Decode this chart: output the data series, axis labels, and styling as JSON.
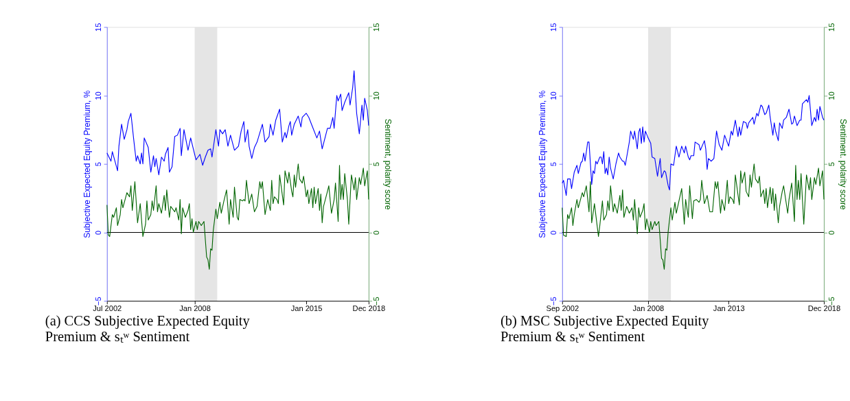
{
  "chart_data": [
    {
      "type": "line",
      "title": "(a) CCS Subjective Expected Equity Premium & sₜʷ Sentiment",
      "ylabel": "Subjective Expected Equity Premium, %",
      "y2label": "Sentiment, polarity score",
      "xlim": [
        "2002-07",
        "2018-12"
      ],
      "xticks": [
        {
          "value": "2002-07",
          "label": "Jul 2002"
        },
        {
          "value": "2008-01",
          "label": "Jan 2008"
        },
        {
          "value": "2015-01",
          "label": "Jan 2015"
        },
        {
          "value": "2018-12",
          "label": "Dec 2018"
        }
      ],
      "ylim": [
        -5,
        15
      ],
      "yticks": [
        -5,
        0,
        5,
        10,
        15
      ],
      "y2lim": [
        -5,
        15
      ],
      "y2ticks": [
        -5,
        0,
        5,
        10,
        15
      ],
      "grid": false,
      "marker": "none",
      "line_style": "solid",
      "bands": [
        {
          "axis": "x",
          "from": "2008-01",
          "to": "2009-06",
          "color": "#e5e5e5"
        }
      ],
      "ref_lines": [
        {
          "axis": "y",
          "value": 0,
          "color": "#000000"
        }
      ],
      "series": [
        {
          "color": "#0000ff",
          "x": [
            "2002-07",
            "2002-10",
            "2002-11",
            "2003-03",
            "2003-04",
            "2003-06",
            "2003-08",
            "2003-10",
            "2003-11",
            "2004-01",
            "2004-03",
            "2004-05",
            "2004-06",
            "2004-08",
            "2004-09",
            "2004-10",
            "2004-11",
            "2005-02",
            "2005-04",
            "2005-06",
            "2005-07",
            "2005-08",
            "2005-10",
            "2005-12",
            "2006-02",
            "2006-03",
            "2006-05",
            "2006-06",
            "2006-08",
            "2006-10",
            "2006-12",
            "2007-02",
            "2007-03",
            "2007-05",
            "2007-08",
            "2007-10",
            "2007-12",
            "2008-02",
            "2008-05",
            "2008-07",
            "2008-09",
            "2008-11",
            "2009-01",
            "2009-02",
            "2009-05",
            "2009-07",
            "2009-08",
            "2009-10",
            "2009-12",
            "2010-02",
            "2010-04",
            "2010-07",
            "2010-10",
            "2010-12",
            "2011-02",
            "2011-03",
            "2011-05",
            "2011-06",
            "2011-08",
            "2011-10",
            "2011-12",
            "2012-04",
            "2012-06",
            "2012-09",
            "2012-10",
            "2012-12",
            "2013-02",
            "2013-05",
            "2013-07",
            "2013-09",
            "2013-10",
            "2013-12",
            "2014-01",
            "2014-02",
            "2014-04",
            "2014-07",
            "2014-09",
            "2014-10",
            "2015-01",
            "2015-03",
            "2015-05",
            "2015-09",
            "2015-11",
            "2016-01",
            "2016-05",
            "2016-07",
            "2016-09",
            "2016-10",
            "2016-12",
            "2017-01",
            "2017-03",
            "2017-04",
            "2017-06",
            "2017-09",
            "2017-10",
            "2017-12",
            "2018-01",
            "2018-03",
            "2018-05",
            "2018-07",
            "2018-08",
            "2018-09",
            "2018-11",
            "2018-12"
          ],
          "values": [
            5.8,
            5.2,
            5.9,
            4.5,
            6.3,
            7.9,
            6.8,
            7.5,
            8.1,
            8.7,
            6.9,
            5.2,
            5.6,
            5.0,
            5.8,
            5.0,
            6.9,
            6.2,
            4.4,
            5.6,
            4.8,
            5.4,
            4.2,
            5.5,
            5.2,
            5.7,
            6.2,
            4.4,
            4.8,
            7.0,
            7.1,
            7.6,
            5.6,
            7.5,
            6.0,
            6.9,
            6.1,
            5.3,
            5.7,
            4.9,
            5.5,
            6.0,
            6.1,
            5.5,
            7.5,
            6.3,
            7.5,
            7.2,
            7.5,
            6.3,
            7.1,
            6.0,
            6.3,
            7.4,
            8.1,
            6.6,
            7.5,
            6.3,
            5.4,
            6.2,
            6.6,
            7.9,
            6.6,
            7.0,
            7.9,
            7.1,
            8.2,
            9.0,
            6.6,
            7.3,
            6.9,
            7.8,
            8.1,
            7.1,
            7.9,
            8.5,
            7.7,
            8.4,
            8.7,
            8.4,
            7.9,
            6.9,
            7.4,
            6.1,
            7.6,
            7.6,
            8.4,
            7.6,
            10.0,
            9.6,
            10.1,
            8.9,
            9.5,
            10.2,
            9.3,
            10.6,
            11.8,
            8.7,
            7.2,
            9.3,
            8.2,
            9.8,
            8.9,
            7.8
          ]
        },
        {
          "color": "#006400",
          "axis": "y2",
          "x": [
            "2002-07",
            "2002-08",
            "2002-09",
            "2002-11",
            "2002-12",
            "2003-02",
            "2003-03",
            "2003-05",
            "2003-06",
            "2003-07",
            "2003-10",
            "2003-12",
            "2004-01",
            "2004-02",
            "2004-04",
            "2004-06",
            "2004-08",
            "2004-10",
            "2004-12",
            "2005-01",
            "2005-02",
            "2005-04",
            "2005-05",
            "2005-06",
            "2005-08",
            "2005-09",
            "2005-10",
            "2005-12",
            "2006-02",
            "2006-03",
            "2006-04",
            "2006-06",
            "2006-07",
            "2006-10",
            "2006-11",
            "2007-01",
            "2007-02",
            "2007-03",
            "2007-04",
            "2007-06",
            "2007-08",
            "2007-09",
            "2007-10",
            "2007-11",
            "2007-12",
            "2008-02",
            "2008-03",
            "2008-04",
            "2008-06",
            "2008-08",
            "2008-10",
            "2008-11",
            "2008-12",
            "2009-01",
            "2009-02",
            "2009-03",
            "2009-05",
            "2009-06",
            "2009-08",
            "2009-09",
            "2009-11",
            "2010-01",
            "2010-03",
            "2010-04",
            "2010-06",
            "2010-07",
            "2010-09",
            "2010-10",
            "2010-11",
            "2011-01",
            "2011-02",
            "2011-03",
            "2011-04",
            "2011-06",
            "2011-08",
            "2011-10",
            "2011-12",
            "2012-02",
            "2012-03",
            "2012-04",
            "2012-06",
            "2012-08",
            "2012-10",
            "2012-11",
            "2012-12",
            "2013-01",
            "2013-03",
            "2013-04",
            "2013-05",
            "2013-08",
            "2013-09",
            "2013-11",
            "2013-12",
            "2014-02",
            "2014-03",
            "2014-04",
            "2014-05",
            "2014-07",
            "2014-08",
            "2014-10",
            "2014-11",
            "2015-01",
            "2015-02",
            "2015-03",
            "2015-05",
            "2015-06",
            "2015-07",
            "2015-08",
            "2015-10",
            "2015-11",
            "2015-12",
            "2016-01",
            "2016-02",
            "2016-05",
            "2016-06",
            "2016-08",
            "2016-10",
            "2016-11",
            "2017-01",
            "2017-02",
            "2017-03",
            "2017-04",
            "2017-05",
            "2017-06",
            "2017-08",
            "2017-09",
            "2017-11",
            "2018-01",
            "2018-02",
            "2018-03",
            "2018-05",
            "2018-06",
            "2018-08",
            "2018-09",
            "2018-11",
            "2018-12"
          ],
          "values": [
            2.0,
            -0.2,
            -0.3,
            1.3,
            1.1,
            1.8,
            0.5,
            1.3,
            2.4,
            1.8,
            2.9,
            2.6,
            3.4,
            1.6,
            3.7,
            0.7,
            2.1,
            -0.3,
            0.6,
            2.3,
            0.9,
            1.3,
            2.3,
            1.6,
            3.4,
            1.5,
            2.1,
            1.4,
            2.7,
            1.6,
            3.1,
            1.1,
            1.9,
            1.5,
            1.8,
            0.9,
            2.4,
            -0.1,
            1.8,
            1.1,
            1.6,
            2.1,
            0.2,
            1.0,
            0.0,
            0.8,
            0.2,
            0.8,
            0.5,
            0.8,
            -1.8,
            -2.0,
            -2.7,
            -1.2,
            -1.3,
            0.1,
            1.7,
            1.0,
            2.2,
            1.4,
            2.3,
            3.1,
            0.6,
            2.4,
            1.1,
            3.3,
            1.1,
            0.9,
            2.4,
            2.3,
            2.4,
            2.3,
            3.8,
            2.1,
            2.8,
            1.5,
            1.9,
            3.7,
            3.2,
            3.7,
            1.3,
            2.4,
            1.6,
            3.8,
            2.1,
            2.6,
            2.4,
            2.1,
            4.2,
            2.0,
            4.5,
            3.6,
            4.4,
            3.0,
            2.6,
            4.2,
            3.3,
            5.0,
            3.9,
            3.6,
            4.1,
            2.6,
            3.1,
            2.1,
            3.2,
            1.8,
            3.3,
            2.1,
            3.2,
            1.6,
            2.8,
            0.7,
            1.9,
            3.0,
            3.4,
            1.4,
            2.4,
            3.6,
            0.8,
            4.9,
            2.4,
            3.5,
            2.4,
            4.3,
            2.4,
            0.6,
            4.2,
            3.1,
            4.0,
            2.4,
            4.0,
            3.5,
            4.7,
            3.4,
            4.5,
            2.4
          ]
        }
      ]
    },
    {
      "type": "line",
      "title": "(b) MSC Subjective Expected Equity Premium & sₜʷ Sentiment",
      "ylabel": "Subjective Expected Equity Premium, %",
      "y2label": "Sentiment. polarity score",
      "xlim": [
        "2002-09",
        "2018-12"
      ],
      "xticks": [
        {
          "value": "2002-09",
          "label": "Sep 2002"
        },
        {
          "value": "2008-01",
          "label": "Jan 2008"
        },
        {
          "value": "2013-01",
          "label": "Jan 2013"
        },
        {
          "value": "2018-12",
          "label": "Dec 2018"
        }
      ],
      "ylim": [
        -5,
        15
      ],
      "yticks": [
        -5,
        0,
        5,
        10,
        15
      ],
      "y2lim": [
        -5,
        15
      ],
      "y2ticks": [
        -5,
        0,
        5,
        10,
        15
      ],
      "grid": false,
      "marker": "none",
      "line_style": "solid",
      "bands": [
        {
          "axis": "x",
          "from": "2008-01",
          "to": "2009-06",
          "color": "#e5e5e5"
        }
      ],
      "ref_lines": [
        {
          "axis": "y",
          "value": 0,
          "color": "#000000"
        }
      ],
      "series": [
        {
          "color": "#0000ff",
          "x": [
            "2002-09",
            "2002-10",
            "2002-12",
            "2003-01",
            "2003-03",
            "2003-04",
            "2003-06",
            "2003-08",
            "2003-09",
            "2003-11",
            "2003-12",
            "2004-01",
            "2004-02",
            "2004-04",
            "2004-05",
            "2004-07",
            "2004-08",
            "2004-09",
            "2004-10",
            "2004-11",
            "2005-01",
            "2005-02",
            "2005-03",
            "2005-04",
            "2005-05",
            "2005-06",
            "2005-07",
            "2005-08",
            "2005-09",
            "2005-11",
            "2006-01",
            "2006-03",
            "2006-04",
            "2006-06",
            "2006-07",
            "2006-08",
            "2006-11",
            "2006-12",
            "2007-02",
            "2007-03",
            "2007-05",
            "2007-06",
            "2007-07",
            "2007-08",
            "2007-09",
            "2007-10",
            "2007-11",
            "2008-01",
            "2008-03",
            "2008-04",
            "2008-06",
            "2008-08",
            "2008-10",
            "2008-11",
            "2009-01",
            "2009-02",
            "2009-04",
            "2009-05",
            "2009-06",
            "2009-08",
            "2009-10",
            "2009-12",
            "2010-02",
            "2010-04",
            "2010-05",
            "2010-07",
            "2010-08",
            "2010-09",
            "2010-11",
            "2010-12",
            "2011-03",
            "2011-04",
            "2011-07",
            "2011-08",
            "2011-09",
            "2011-10",
            "2011-12",
            "2012-02",
            "2012-04",
            "2012-06",
            "2012-08",
            "2012-10",
            "2013-01",
            "2013-03",
            "2013-04",
            "2013-06",
            "2013-08",
            "2013-09",
            "2013-10",
            "2013-12",
            "2014-02",
            "2014-03",
            "2014-04",
            "2014-07",
            "2014-08",
            "2014-10",
            "2014-11",
            "2015-01",
            "2015-02",
            "2015-04",
            "2015-05",
            "2015-07",
            "2015-08",
            "2015-10",
            "2015-11",
            "2015-12",
            "2016-02",
            "2016-03",
            "2016-05",
            "2016-06",
            "2016-08",
            "2016-10",
            "2016-12",
            "2017-01",
            "2017-02",
            "2017-04",
            "2017-06",
            "2017-07",
            "2017-08",
            "2017-11",
            "2017-12",
            "2018-01",
            "2018-03",
            "2018-05",
            "2018-06",
            "2018-07",
            "2018-08",
            "2018-09",
            "2018-11",
            "2018-12"
          ],
          "values": [
            3.6,
            3.8,
            2.7,
            3.9,
            3.9,
            3.2,
            4.4,
            4.9,
            4.3,
            5.1,
            5.2,
            5.8,
            5.2,
            6.6,
            6.6,
            3.5,
            4.5,
            4.3,
            5.2,
            5.0,
            5.5,
            5.5,
            5.0,
            5.9,
            4.3,
            4.7,
            4.2,
            5.5,
            4.7,
            3.9,
            5.0,
            5.8,
            5.5,
            5.2,
            5.2,
            4.9,
            6.6,
            7.4,
            6.8,
            7.4,
            6.1,
            7.3,
            7.6,
            6.5,
            7.7,
            6.6,
            7.4,
            6.9,
            6.5,
            5.5,
            5.4,
            4.1,
            5.4,
            4.0,
            4.5,
            4.4,
            3.4,
            3.1,
            5.0,
            4.9,
            6.3,
            5.5,
            6.3,
            5.8,
            6.3,
            5.5,
            5.3,
            5.6,
            5.6,
            6.6,
            6.4,
            6.0,
            6.7,
            6.1,
            4.6,
            5.4,
            5.2,
            5.4,
            7.4,
            6.4,
            6.0,
            7.1,
            6.3,
            7.4,
            7.1,
            8.2,
            7.0,
            7.7,
            7.1,
            8.1,
            8.0,
            7.6,
            8.0,
            8.4,
            7.9,
            8.7,
            8.5,
            9.3,
            9.2,
            8.6,
            8.7,
            9.3,
            8.4,
            7.1,
            8.0,
            7.4,
            6.7,
            8.0,
            7.6,
            8.2,
            8.4,
            9.0,
            7.9,
            8.0,
            8.5,
            7.8,
            8.2,
            8.2,
            9.4,
            9.7,
            9.5,
            10.0,
            7.8,
            8.4,
            8.1,
            9.0,
            8.2,
            9.2,
            8.4,
            8.2
          ]
        },
        {
          "color": "#006400",
          "axis": "y2",
          "x": [
            "2002-09",
            "2002-10",
            "2002-12",
            "2003-01",
            "2003-02",
            "2003-04",
            "2003-05",
            "2003-06",
            "2003-08",
            "2003-09",
            "2003-12",
            "2004-01",
            "2004-03",
            "2004-05",
            "2004-06",
            "2004-07",
            "2004-09",
            "2004-12",
            "2005-01",
            "2005-03",
            "2005-04",
            "2005-06",
            "2005-07",
            "2005-08",
            "2005-09",
            "2005-11",
            "2005-12",
            "2006-02",
            "2006-04",
            "2006-05",
            "2006-06",
            "2006-07",
            "2006-09",
            "2006-11",
            "2007-01",
            "2007-02",
            "2007-03",
            "2007-05",
            "2007-06",
            "2007-07",
            "2007-09",
            "2007-10",
            "2007-11",
            "2007-12",
            "2008-02",
            "2008-03",
            "2008-04",
            "2008-06",
            "2008-07",
            "2008-09",
            "2008-11",
            "2008-12",
            "2009-01",
            "2009-02",
            "2009-03",
            "2009-04",
            "2009-06",
            "2009-07",
            "2009-09",
            "2009-10",
            "2009-12",
            "2010-02",
            "2010-04",
            "2010-05",
            "2010-07",
            "2010-08",
            "2010-10",
            "2010-11",
            "2011-01",
            "2011-03",
            "2011-04",
            "2011-05",
            "2011-07",
            "2011-09",
            "2011-11",
            "2012-01",
            "2012-03",
            "2012-04",
            "2012-05",
            "2012-07",
            "2012-08",
            "2012-10",
            "2012-12",
            "2013-01",
            "2013-02",
            "2013-04",
            "2013-05",
            "2013-06",
            "2013-09",
            "2013-10",
            "2013-11",
            "2014-01",
            "2014-02",
            "2014-04",
            "2014-05",
            "2014-06",
            "2014-08",
            "2014-09",
            "2014-11",
            "2014-12",
            "2015-01",
            "2015-03",
            "2015-04",
            "2015-05",
            "2015-06",
            "2015-08",
            "2015-09",
            "2015-10",
            "2015-11",
            "2015-12",
            "2016-02",
            "2016-03",
            "2016-05",
            "2016-06",
            "2016-09",
            "2016-10",
            "2016-12",
            "2017-02",
            "2017-03",
            "2017-04",
            "2017-05",
            "2017-06",
            "2017-07",
            "2017-08",
            "2017-09",
            "2017-11",
            "2018-01",
            "2018-02",
            "2018-03",
            "2018-05",
            "2018-06",
            "2018-08",
            "2018-09",
            "2018-11",
            "2018-12"
          ],
          "values": [
            1.8,
            -0.2,
            -0.3,
            1.3,
            1.0,
            1.8,
            0.5,
            1.3,
            2.4,
            1.8,
            2.9,
            2.6,
            3.4,
            1.5,
            3.7,
            0.7,
            2.1,
            -0.3,
            0.5,
            2.3,
            0.9,
            1.3,
            2.3,
            1.6,
            3.4,
            1.5,
            2.1,
            1.4,
            2.7,
            1.6,
            3.1,
            1.1,
            1.9,
            1.4,
            1.8,
            0.9,
            2.4,
            -0.1,
            1.8,
            1.1,
            1.6,
            2.1,
            0.2,
            1.0,
            0.0,
            0.8,
            0.2,
            0.8,
            0.5,
            0.8,
            -1.9,
            -2.0,
            -2.7,
            -1.2,
            -1.3,
            0.1,
            1.8,
            0.9,
            2.2,
            1.4,
            2.3,
            3.2,
            0.6,
            2.4,
            1.1,
            3.4,
            1.0,
            2.3,
            2.4,
            2.2,
            2.4,
            3.8,
            2.1,
            2.7,
            1.5,
            1.5,
            3.7,
            3.2,
            3.7,
            1.4,
            2.4,
            1.6,
            3.8,
            2.1,
            2.6,
            2.4,
            2.1,
            4.2,
            2.0,
            4.5,
            3.6,
            4.4,
            3.0,
            2.6,
            4.2,
            3.3,
            5.0,
            3.9,
            3.6,
            4.1,
            2.6,
            3.1,
            2.1,
            3.2,
            1.8,
            3.3,
            2.1,
            3.2,
            1.6,
            2.8,
            0.7,
            1.9,
            3.0,
            3.4,
            1.4,
            2.4,
            3.6,
            0.8,
            4.9,
            2.4,
            3.8,
            2.4,
            4.3,
            2.4,
            0.6,
            4.2,
            3.1,
            4.0,
            2.4,
            4.0,
            3.5,
            4.7,
            3.4,
            4.5,
            2.4
          ]
        }
      ]
    }
  ]
}
